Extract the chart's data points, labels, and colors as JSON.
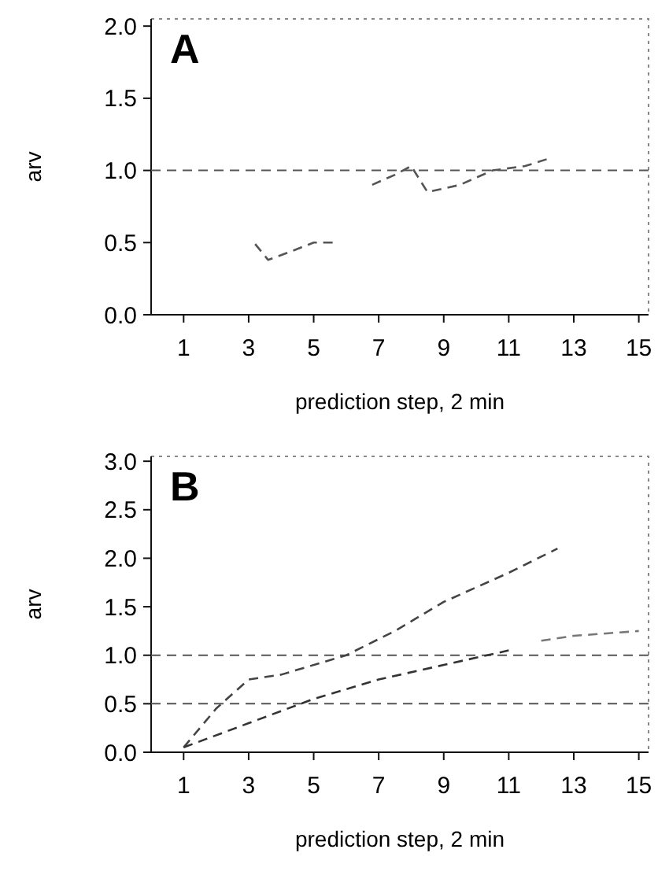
{
  "chart_data": [
    {
      "type": "line",
      "annotations": [
        "A"
      ],
      "xlabel": "prediction step, 2 min",
      "ylabel": "arv",
      "xlim": [
        0,
        15.3
      ],
      "xticks": [
        1,
        3,
        5,
        7,
        9,
        11,
        13,
        15
      ],
      "ylim": [
        0,
        2.05
      ],
      "yticks": [
        {
          "value": 0,
          "label": "0.0"
        },
        {
          "value": 0.5,
          "label": "0.5"
        },
        {
          "value": 1,
          "label": "1.0"
        },
        {
          "value": 1.5,
          "label": "1.5"
        },
        {
          "value": 2,
          "label": "2.0"
        }
      ],
      "grid": false,
      "line_style": "dashed",
      "ref_lines": [
        {
          "axis": "y",
          "value": 1,
          "color": "#555555",
          "line_style": "dashed"
        }
      ],
      "series": [
        {
          "color": "#555555",
          "x": [
            3.2,
            3.6,
            4.2,
            5,
            5.6
          ],
          "values": [
            0.49,
            0.38,
            0.43,
            0.5,
            0.5
          ]
        },
        {
          "color": "#555555",
          "x": [
            6.8,
            7.5,
            8,
            8.5,
            9.5,
            10.5,
            11.5,
            12.2
          ],
          "values": [
            0.9,
            0.97,
            1.03,
            0.85,
            0.9,
            1.0,
            1.03,
            1.08
          ]
        }
      ]
    },
    {
      "type": "line",
      "annotations": [
        "B"
      ],
      "xlabel": "prediction step, 2 min",
      "ylabel": "arv",
      "xlim": [
        0,
        15.3
      ],
      "xticks": [
        1,
        3,
        5,
        7,
        9,
        11,
        13,
        15
      ],
      "ylim": [
        0,
        3.05
      ],
      "yticks": [
        {
          "value": 0,
          "label": "0.0"
        },
        {
          "value": 0.5,
          "label": "0.5"
        },
        {
          "value": 1,
          "label": "1.0"
        },
        {
          "value": 1.5,
          "label": "1.5"
        },
        {
          "value": 2,
          "label": "2.0"
        },
        {
          "value": 2.5,
          "label": "2.5"
        },
        {
          "value": 3,
          "label": "3.0"
        }
      ],
      "grid": false,
      "line_style": "dashed",
      "ref_lines": [
        {
          "axis": "y",
          "value": 1,
          "color": "#555555",
          "line_style": "dashed"
        },
        {
          "axis": "y",
          "value": 0.5,
          "color": "#555555",
          "line_style": "dashed"
        }
      ],
      "series": [
        {
          "color": "#444444",
          "x": [
            1,
            2,
            3,
            4,
            6,
            7.5,
            9,
            11,
            12.5
          ],
          "values": [
            0.05,
            0.45,
            0.75,
            0.8,
            1.0,
            1.25,
            1.55,
            1.85,
            2.1
          ]
        },
        {
          "color": "#333333",
          "x": [
            1,
            3,
            5,
            7,
            9,
            11
          ],
          "values": [
            0.05,
            0.3,
            0.55,
            0.75,
            0.9,
            1.05
          ]
        },
        {
          "color": "#777777",
          "x": [
            12,
            13,
            15
          ],
          "values": [
            1.15,
            1.2,
            1.25
          ]
        }
      ]
    }
  ]
}
